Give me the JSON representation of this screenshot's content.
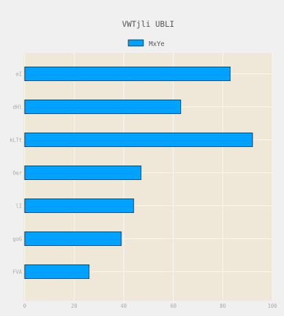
{
  "chart_data": {
    "type": "bar",
    "orientation": "horizontal",
    "title": "VWTjli   UBLI",
    "categories": [
      "eI",
      "dHl",
      "kLTt",
      "Oer",
      "lI",
      "goG",
      "FVA"
    ],
    "series": [
      {
        "name": "MxYe",
        "values": [
          83,
          63,
          92,
          47,
          44,
          39,
          26
        ],
        "color": "#00a2ff"
      }
    ],
    "xlabel": "",
    "ylabel": "",
    "xlim": [
      0,
      100
    ],
    "x_ticks": [
      0,
      20,
      40,
      60,
      80,
      100
    ],
    "grid": true,
    "legend_position": "top-center",
    "plot_background": "#efe8d8",
    "page_background": "#f0f0f0",
    "bar_edge_color": "#1a1a1a"
  }
}
